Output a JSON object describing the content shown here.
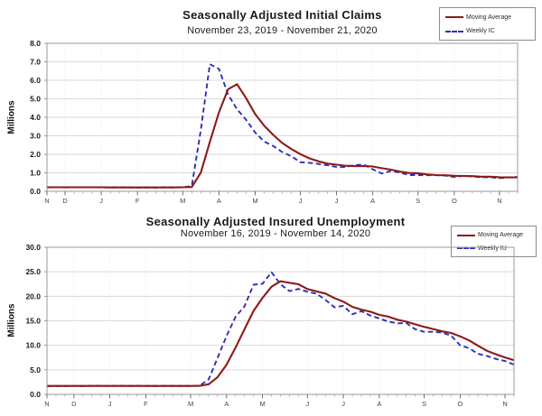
{
  "page": {
    "background": "#ffffff"
  },
  "colors": {
    "moving_average_line": "#8b1a1a",
    "weekly_line": "#2e2eb8",
    "gridline": "#d9d9d9",
    "plot_border": "#9a9a9a",
    "axis_text": "#1a1a1a",
    "x_tick_text": "#444444"
  },
  "chart_data": [
    {
      "type": "line",
      "title": "Seasonally Adjusted Initial Claims",
      "subtitle": "November 23, 2019 - November 21, 2020",
      "ylabel": "Millions",
      "ylim": [
        0,
        8
      ],
      "ytick_step": 1,
      "grid": "horizontal-on, faint dotted vertical at months",
      "legend_position": "top-right",
      "x_unit": "weeks",
      "n_points": 53,
      "month_tick_labels": [
        "N",
        "D",
        "J",
        "F",
        "M",
        "A",
        "M",
        "J",
        "J",
        "A",
        "S",
        "O",
        "N"
      ],
      "month_tick_point_index": [
        0,
        2,
        6,
        10,
        15,
        19,
        23,
        28,
        32,
        36,
        41,
        45,
        50
      ],
      "legend": {
        "entries": [
          {
            "label": "Moving Average",
            "color": "#8b1a1a",
            "style": "solid"
          },
          {
            "label": "Weekly IC",
            "color": "#2e2eb8",
            "style": "dashed"
          }
        ]
      },
      "series": [
        {
          "name": "Moving Average",
          "color": "#8b1a1a",
          "style": "solid",
          "values": [
            0.22,
            0.22,
            0.22,
            0.22,
            0.22,
            0.22,
            0.22,
            0.21,
            0.21,
            0.21,
            0.21,
            0.21,
            0.21,
            0.21,
            0.21,
            0.22,
            0.23,
            1.01,
            2.67,
            4.27,
            5.51,
            5.79,
            5.04,
            4.18,
            3.54,
            3.05,
            2.61,
            2.29,
            2.01,
            1.78,
            1.62,
            1.5,
            1.44,
            1.38,
            1.36,
            1.37,
            1.34,
            1.25,
            1.17,
            1.07,
            0.99,
            0.97,
            0.91,
            0.88,
            0.87,
            0.84,
            0.83,
            0.82,
            0.79,
            0.79,
            0.76,
            0.75,
            0.75
          ]
        },
        {
          "name": "Weekly IC",
          "color": "#2e2eb8",
          "style": "dashed",
          "values": [
            0.21,
            0.22,
            0.21,
            0.22,
            0.22,
            0.22,
            0.21,
            0.21,
            0.22,
            0.21,
            0.2,
            0.21,
            0.2,
            0.22,
            0.21,
            0.22,
            0.28,
            3.31,
            6.87,
            6.62,
            5.24,
            4.44,
            3.87,
            3.18,
            2.69,
            2.45,
            2.12,
            1.9,
            1.57,
            1.54,
            1.48,
            1.41,
            1.31,
            1.31,
            1.42,
            1.44,
            1.19,
            0.96,
            1.1,
            1.01,
            0.88,
            0.88,
            0.87,
            0.87,
            0.85,
            0.77,
            0.84,
            0.8,
            0.76,
            0.76,
            0.71,
            0.75,
            0.78
          ]
        }
      ]
    },
    {
      "type": "line",
      "title": "Seasonally Adjusted Insured Unemployment",
      "subtitle": "November 16, 2019 - November 14, 2020",
      "ylabel": "Millions",
      "ylim": [
        0,
        30
      ],
      "ytick_step": 5,
      "grid": "horizontal-on, faint dotted vertical at months",
      "legend_position": "top-right",
      "x_unit": "weeks",
      "n_points": 53,
      "month_tick_labels": [
        "N",
        "D",
        "J",
        "F",
        "M",
        "A",
        "M",
        "J",
        "J",
        "A",
        "S",
        "O",
        "N"
      ],
      "month_tick_point_index": [
        0,
        3,
        7,
        11,
        16,
        20,
        24,
        29,
        33,
        37,
        42,
        46,
        51
      ],
      "legend": {
        "entries": [
          {
            "label": "Moving Average",
            "color": "#8b1a1a",
            "style": "solid"
          },
          {
            "label": "Weekly IU",
            "color": "#2e2eb8",
            "style": "dashed"
          }
        ]
      },
      "series": [
        {
          "name": "Moving Average",
          "color": "#8b1a1a",
          "style": "solid",
          "values": [
            1.71,
            1.71,
            1.71,
            1.71,
            1.71,
            1.71,
            1.71,
            1.71,
            1.71,
            1.71,
            1.71,
            1.71,
            1.71,
            1.71,
            1.71,
            1.71,
            1.71,
            1.73,
            2.07,
            3.51,
            6.05,
            9.56,
            13.29,
            17.02,
            19.68,
            21.95,
            23.07,
            22.74,
            22.48,
            21.48,
            21.0,
            20.56,
            19.63,
            18.91,
            17.86,
            17.28,
            16.86,
            16.22,
            15.84,
            15.23,
            14.84,
            14.29,
            13.77,
            13.33,
            12.84,
            12.52,
            11.83,
            11.0,
            9.92,
            8.88,
            8.18,
            7.53,
            6.98
          ]
        },
        {
          "name": "Weekly IU",
          "color": "#2e2eb8",
          "style": "dashed",
          "values": [
            1.68,
            1.69,
            1.7,
            1.72,
            1.7,
            1.74,
            1.75,
            1.7,
            1.76,
            1.71,
            1.73,
            1.72,
            1.7,
            1.72,
            1.73,
            1.7,
            1.72,
            1.77,
            3.06,
            7.45,
            11.91,
            15.82,
            17.97,
            22.38,
            22.55,
            24.91,
            22.45,
            21.05,
            21.49,
            20.93,
            20.54,
            19.29,
            17.76,
            18.06,
            16.34,
            16.95,
            16.09,
            15.48,
            14.84,
            14.49,
            14.54,
            13.29,
            12.75,
            12.75,
            12.58,
            11.98,
            10.02,
            9.4,
            8.26,
            7.82,
            7.22,
            6.8,
            6.07
          ]
        }
      ]
    }
  ]
}
